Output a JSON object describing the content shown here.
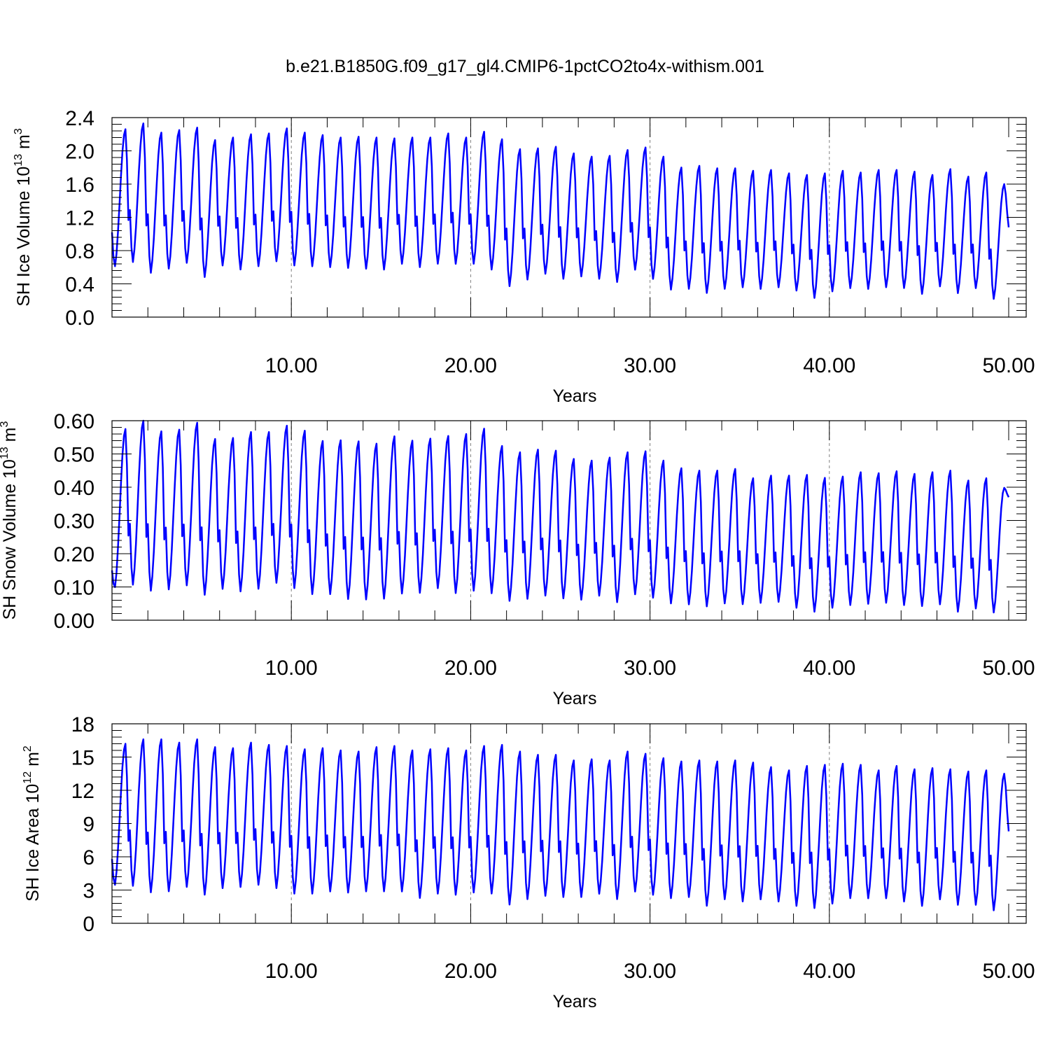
{
  "title": "b.e21.B1850G.f09_g17_gl4.CMIP6-1pctCO2to4x-withism.001",
  "colors": {
    "series": "#0000ff",
    "axis": "#000000",
    "grid": "#808080"
  },
  "chart_data": [
    {
      "type": "line",
      "xlabel": "Years",
      "ylabel_main": "SH Ice Volume 10",
      "ylabel_exp": "13",
      "ylabel_unit": " m",
      "ylabel_unit_exp": "3",
      "xlim": [
        0,
        50
      ],
      "ylim": [
        0,
        2.4
      ],
      "xticks": [
        10,
        20,
        30,
        40,
        50
      ],
      "xtick_labels": [
        "10.00",
        "20.00",
        "30.00",
        "40.00",
        "50.00"
      ],
      "yticks": [
        0,
        0.4,
        0.8,
        1.2,
        1.6,
        2.0,
        2.4
      ],
      "ytick_labels": [
        "0.0",
        "0.4",
        "0.8",
        "1.2",
        "1.6",
        "2.0",
        "2.4"
      ],
      "grid": "dashed vertical at x ticks",
      "series": [
        {
          "line_start": 1.02,
          "line_end": 1.08,
          "maxima": [
            2.26,
            2.33,
            2.22,
            2.25,
            2.28,
            2.13,
            2.16,
            2.2,
            2.21,
            2.27,
            2.22,
            2.19,
            2.16,
            2.17,
            2.16,
            2.15,
            2.16,
            2.16,
            2.21,
            2.16,
            2.23,
            2.14,
            2.02,
            2.03,
            2.05,
            1.97,
            1.93,
            1.94,
            2.01,
            2.04,
            1.93,
            1.8,
            1.82,
            1.79,
            1.79,
            1.76,
            1.77,
            1.73,
            1.71,
            1.73,
            1.76,
            1.74,
            1.77,
            1.77,
            1.75,
            1.71,
            1.78,
            1.69,
            1.74,
            1.6
          ],
          "minima": [
            0.59,
            0.64,
            0.51,
            0.56,
            0.63,
            0.46,
            0.6,
            0.55,
            0.59,
            0.65,
            0.6,
            0.59,
            0.58,
            0.57,
            0.56,
            0.55,
            0.62,
            0.58,
            0.62,
            0.62,
            0.62,
            0.55,
            0.35,
            0.43,
            0.5,
            0.44,
            0.47,
            0.44,
            0.4,
            0.55,
            0.44,
            0.31,
            0.32,
            0.27,
            0.32,
            0.34,
            0.32,
            0.34,
            0.3,
            0.21,
            0.29,
            0.33,
            0.32,
            0.34,
            0.33,
            0.26,
            0.35,
            0.27,
            0.33,
            0.2
          ]
        }
      ]
    },
    {
      "type": "line",
      "xlabel": "Years",
      "ylabel_main": "SH Snow Volume 10",
      "ylabel_exp": "13",
      "ylabel_unit": " m",
      "ylabel_unit_exp": "3",
      "xlim": [
        0,
        50
      ],
      "ylim": [
        0,
        0.6
      ],
      "xticks": [
        10,
        20,
        30,
        40,
        50
      ],
      "xtick_labels": [
        "10.00",
        "20.00",
        "30.00",
        "40.00",
        "50.00"
      ],
      "yticks": [
        0,
        0.1,
        0.2,
        0.3,
        0.4,
        0.5,
        0.6
      ],
      "ytick_labels": [
        "0.00",
        "0.10",
        "0.20",
        "0.30",
        "0.40",
        "0.50",
        "0.60"
      ],
      "grid": "dashed vertical at x ticks",
      "series": [
        {
          "line_start": 0.15,
          "line_end": 0.37,
          "maxima": [
            0.575,
            0.6,
            0.568,
            0.573,
            0.594,
            0.545,
            0.548,
            0.566,
            0.566,
            0.585,
            0.57,
            0.539,
            0.541,
            0.538,
            0.531,
            0.553,
            0.54,
            0.546,
            0.554,
            0.56,
            0.576,
            0.524,
            0.505,
            0.513,
            0.51,
            0.485,
            0.48,
            0.489,
            0.505,
            0.508,
            0.48,
            0.457,
            0.45,
            0.45,
            0.455,
            0.427,
            0.435,
            0.435,
            0.437,
            0.428,
            0.432,
            0.445,
            0.442,
            0.448,
            0.44,
            0.445,
            0.45,
            0.42,
            0.427,
            0.398
          ],
          "minima": [
            0.093,
            0.1,
            0.082,
            0.086,
            0.098,
            0.07,
            0.088,
            0.08,
            0.088,
            0.106,
            0.09,
            0.072,
            0.072,
            0.057,
            0.056,
            0.058,
            0.074,
            0.076,
            0.09,
            0.075,
            0.082,
            0.075,
            0.052,
            0.058,
            0.068,
            0.06,
            0.056,
            0.068,
            0.048,
            0.072,
            0.062,
            0.045,
            0.042,
            0.036,
            0.045,
            0.043,
            0.047,
            0.05,
            0.032,
            0.02,
            0.032,
            0.04,
            0.044,
            0.047,
            0.04,
            0.037,
            0.042,
            0.02,
            0.03,
            0.018
          ]
        }
      ]
    },
    {
      "type": "line",
      "xlabel": "Years",
      "ylabel_main": "SH Ice Area 10",
      "ylabel_exp": "12",
      "ylabel_unit": " m",
      "ylabel_unit_exp": "2",
      "xlim": [
        0,
        50
      ],
      "ylim": [
        0,
        18
      ],
      "xticks": [
        10,
        20,
        30,
        40,
        50
      ],
      "xtick_labels": [
        "10.00",
        "20.00",
        "30.00",
        "40.00",
        "50.00"
      ],
      "yticks": [
        0,
        3,
        6,
        9,
        12,
        15,
        18
      ],
      "ytick_labels": [
        "0",
        "3",
        "6",
        "9",
        "12",
        "15",
        "18"
      ],
      "grid": "dashed vertical at x ticks",
      "series": [
        {
          "line_start": 5.8,
          "line_end": 8.3,
          "maxima": [
            16.2,
            16.6,
            16.6,
            16.3,
            16.6,
            15.9,
            15.8,
            16.3,
            16.1,
            16.0,
            15.7,
            15.8,
            15.6,
            15.5,
            15.9,
            16.0,
            15.6,
            15.7,
            15.8,
            15.6,
            16.0,
            16.1,
            15.5,
            15.2,
            15.2,
            14.7,
            14.8,
            14.7,
            15.5,
            15.3,
            14.9,
            14.6,
            14.7,
            14.6,
            14.7,
            14.5,
            14.1,
            13.8,
            14.2,
            14.3,
            14.4,
            14.3,
            13.8,
            14.2,
            13.9,
            14.0,
            13.9,
            13.7,
            13.8,
            13.5
          ],
          "minima": [
            3.3,
            3.2,
            2.6,
            2.7,
            3.1,
            2.4,
            3.0,
            3.1,
            3.3,
            3.0,
            2.5,
            2.5,
            2.7,
            2.6,
            2.7,
            2.7,
            2.7,
            2.1,
            2.5,
            2.4,
            2.6,
            2.5,
            1.5,
            2.0,
            2.3,
            2.2,
            2.2,
            2.5,
            2.0,
            2.7,
            2.4,
            2.1,
            2.2,
            1.4,
            2.0,
            1.8,
            2.0,
            1.8,
            1.4,
            1.2,
            1.6,
            2.1,
            2.1,
            2.1,
            1.8,
            1.4,
            2.0,
            1.5,
            1.5,
            1.0
          ]
        }
      ]
    }
  ]
}
